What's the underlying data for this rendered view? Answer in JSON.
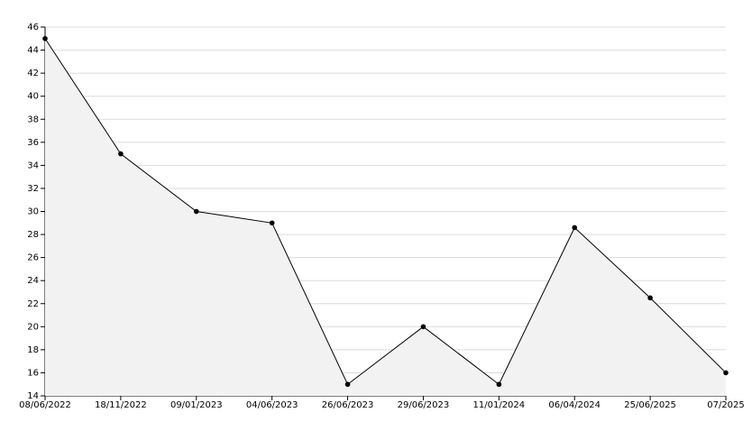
{
  "chart_data": {
    "type": "area",
    "categories": [
      "08/06/2022",
      "18/11/2022",
      "09/01/2023",
      "04/06/2023",
      "26/06/2023",
      "29/06/2023",
      "11/01/2024",
      "06/04/2024",
      "25/06/2025",
      "07/2025"
    ],
    "values": [
      45,
      35,
      30,
      29,
      15,
      20,
      15,
      28.6,
      22.5,
      16
    ],
    "color": "#000000",
    "fill": "#f2f2f2",
    "ylim": [
      14,
      46
    ],
    "yticks": [
      14,
      16,
      18,
      20,
      22,
      24,
      26,
      28,
      30,
      32,
      34,
      36,
      38,
      40,
      42,
      44,
      46
    ],
    "grid": true
  }
}
